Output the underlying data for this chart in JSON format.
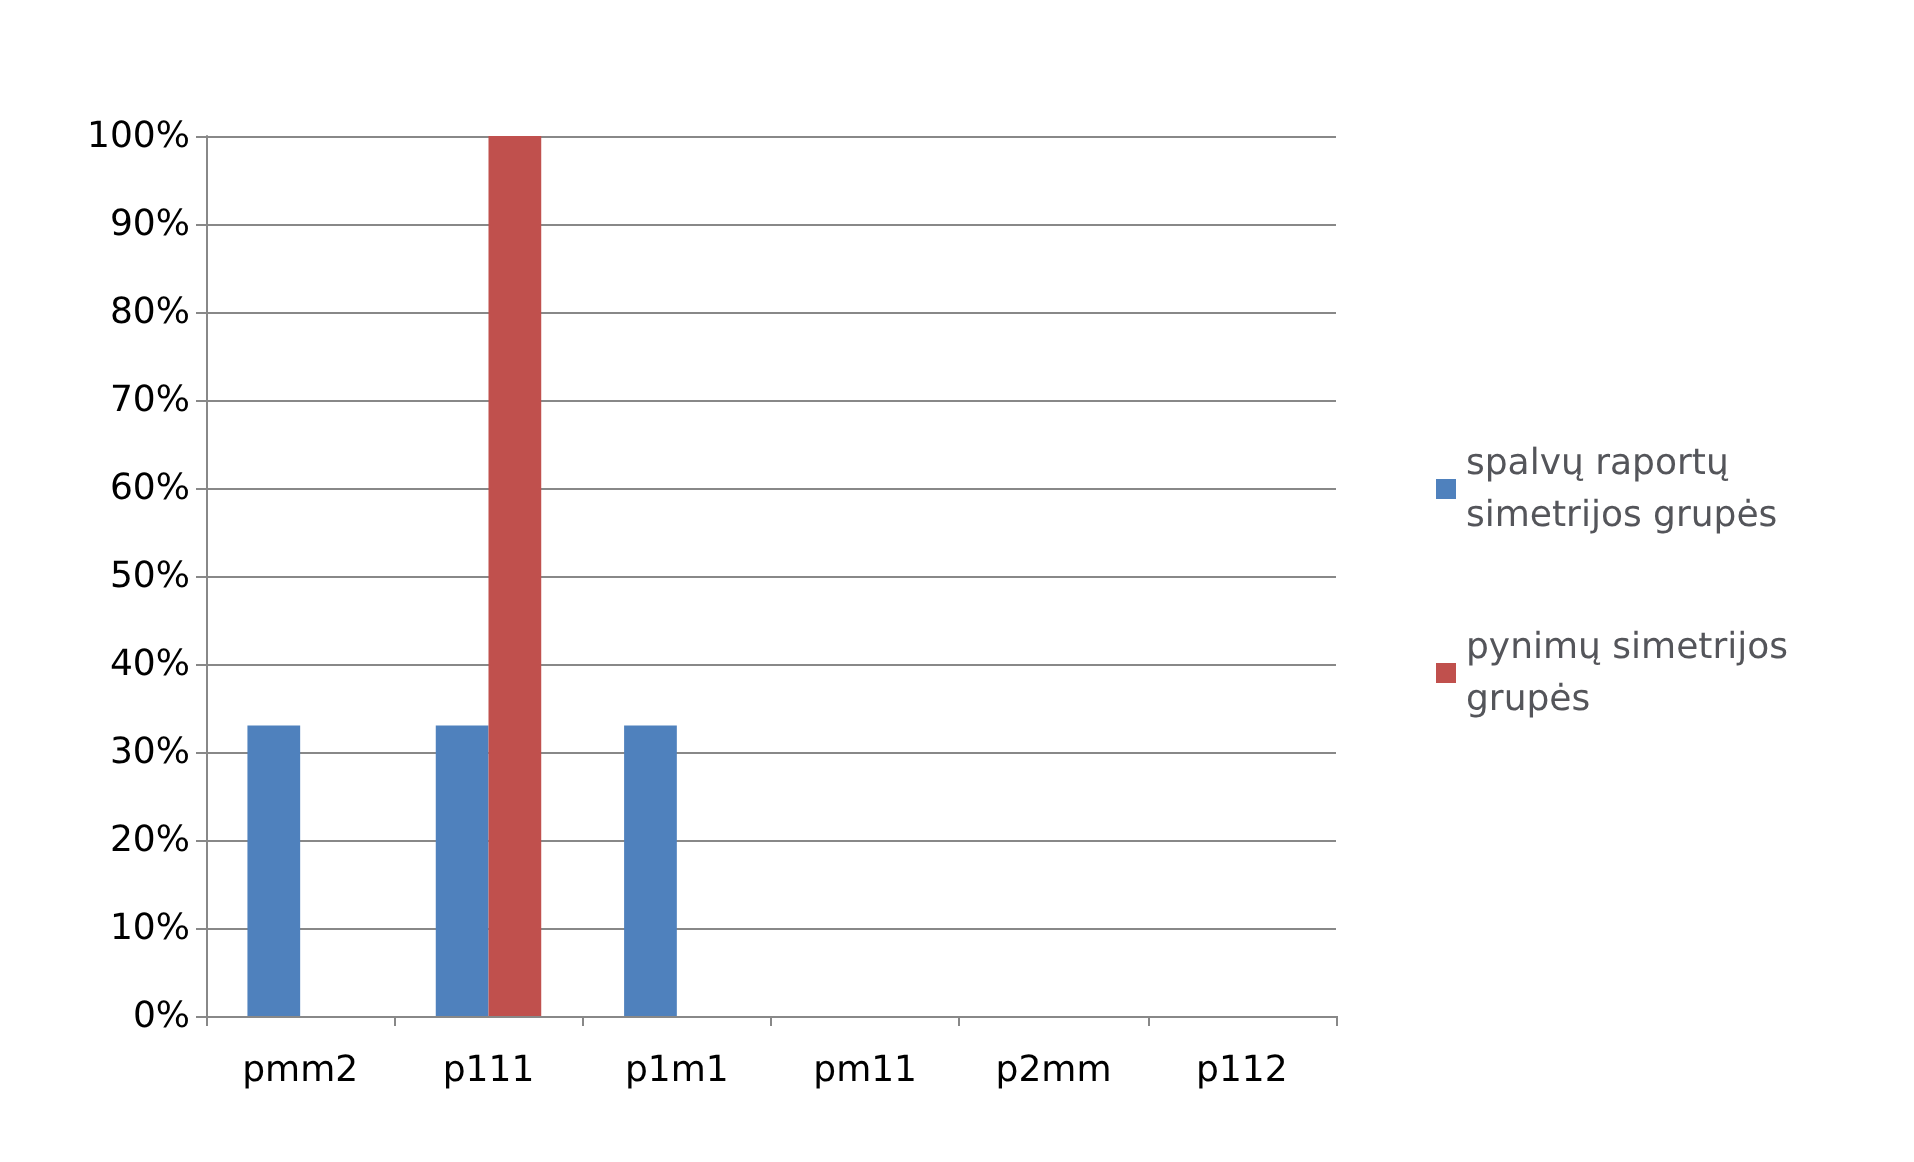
{
  "chart_data": {
    "type": "bar",
    "categories": [
      "pmm2",
      "p111",
      "p1m1",
      "pm11",
      "p2mm",
      "p112"
    ],
    "series": [
      {
        "name": "spalvų raportų simetrijos grupės",
        "color": "#4f81bd",
        "values": [
          33,
          33,
          33,
          0,
          0,
          0
        ]
      },
      {
        "name": "pynimų simetrijos grupės",
        "color": "#c0504d",
        "values": [
          0,
          100,
          0,
          0,
          0,
          0
        ]
      }
    ],
    "ylim": [
      0,
      100
    ],
    "yticks": [
      {
        "value": 0,
        "label": "0%"
      },
      {
        "value": 10,
        "label": "10%"
      },
      {
        "value": 20,
        "label": "20%"
      },
      {
        "value": 30,
        "label": "30%"
      },
      {
        "value": 40,
        "label": "40%"
      },
      {
        "value": 50,
        "label": "50%"
      },
      {
        "value": 60,
        "label": "60%"
      },
      {
        "value": 70,
        "label": "70%"
      },
      {
        "value": 80,
        "label": "80%"
      },
      {
        "value": 90,
        "label": "90%"
      },
      {
        "value": 100,
        "label": "100%"
      }
    ],
    "grid": "y",
    "legend": "right"
  }
}
